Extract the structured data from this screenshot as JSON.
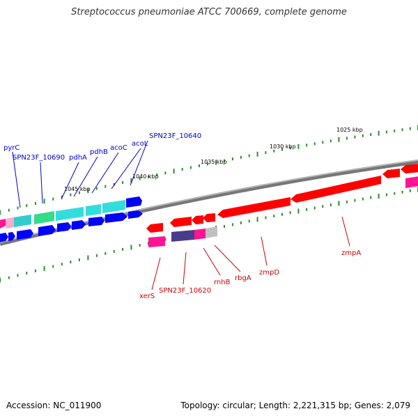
{
  "title": "Streptococcus pneumoniae ATCC 700669, complete genome",
  "footer": {
    "accession": "Accession: NC_011900",
    "summary": "Topology: circular; Length: 2,221,315 bp; Genes: 2,079"
  },
  "colors": {
    "backbone": "#808080",
    "tick": "#228b22",
    "forward_label": "#0000cc",
    "reverse_label": "#cc0000",
    "forward_gene": "#0000ff",
    "forward_gene_alt": "#33dddd",
    "forward_gene_green": "#33dd88",
    "reverse_gene": "#ff0000",
    "reverse_gene_magenta": "#ff1493",
    "reverse_gene_purple": "#483d8b",
    "reverse_gene_grey": "#c0c0c0"
  },
  "scale_labels": [
    "1025 kbp",
    "1030 kbp",
    "1035 kbp",
    "1040 kbp",
    "1045 kbp"
  ],
  "forward_labels": [
    "pyrC",
    "SPN23F_10690",
    "pdhA",
    "pdhB",
    "acoC",
    "acoL",
    "SPN23F_10640"
  ],
  "reverse_labels": [
    "xerS",
    "SPN23F_10620",
    "rnhB",
    "rbgA",
    "zmpD",
    "zmpA"
  ]
}
